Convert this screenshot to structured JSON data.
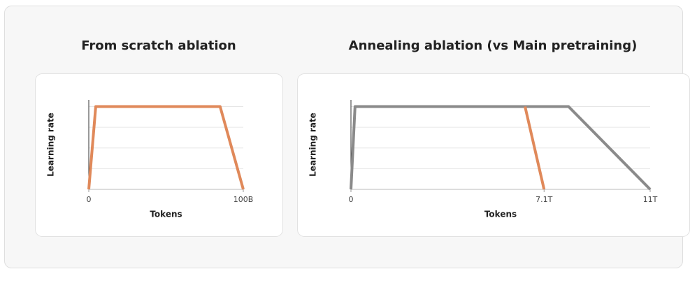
{
  "chart_data": [
    {
      "type": "line",
      "title": "From scratch ablation",
      "x_label": "Tokens",
      "y_label": "Learning rate",
      "xlim": [
        0,
        100
      ],
      "xticks": [
        0,
        {
          "value": 100,
          "label": "100B"
        }
      ],
      "ylim": [
        0,
        1.08
      ],
      "grid_y": [
        0.25,
        0.5,
        0.75,
        1
      ],
      "grid": true,
      "series": [
        {
          "color": "#e0895a",
          "x": [
            0,
            4.5,
            85,
            100
          ],
          "values": [
            0,
            1,
            1,
            0
          ]
        }
      ]
    },
    {
      "type": "line",
      "title": "Annealing ablation (vs Main pretraining)",
      "x_label": "Tokens",
      "y_label": "Learning rate",
      "xlim": [
        0,
        11
      ],
      "xticks": [
        0,
        {
          "value": 7.1,
          "label": "7.1T"
        },
        {
          "value": 11,
          "label": "11T"
        }
      ],
      "ylim": [
        0,
        1.08
      ],
      "grid_y": [
        0.25,
        0.5,
        0.75,
        1
      ],
      "grid": true,
      "series": [
        {
          "color": "#8a8a8a",
          "x": [
            0,
            0.15,
            8.0,
            11
          ],
          "values": [
            0,
            1,
            1,
            0
          ]
        },
        {
          "color": "#e0895a",
          "x": [
            6.4,
            7.1
          ],
          "values": [
            1,
            0
          ]
        }
      ]
    }
  ]
}
